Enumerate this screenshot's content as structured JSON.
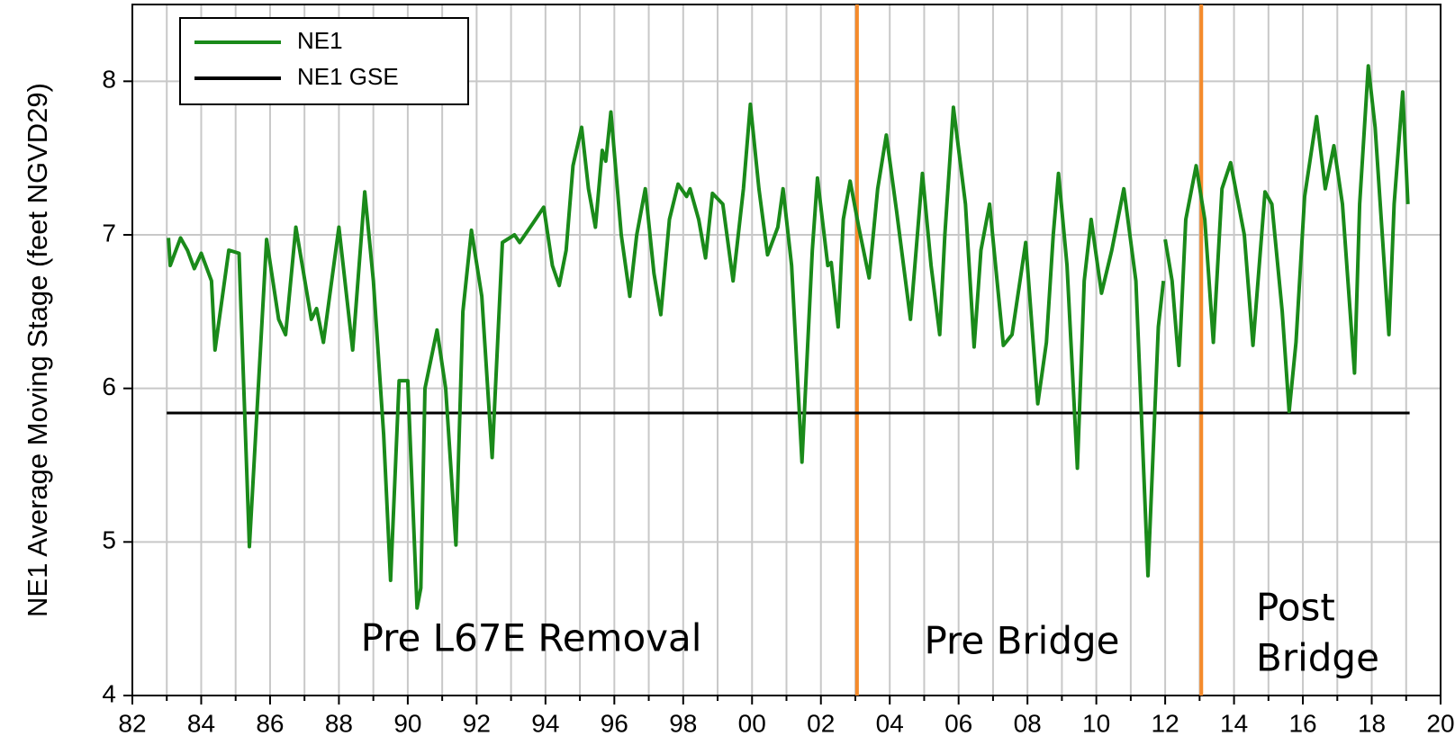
{
  "chart_data": {
    "type": "line",
    "y_label": "NE1 Average Moving Stage (feet NGVD29)",
    "series": [
      {
        "name": "NE1",
        "color": "#1a8a1a",
        "x": [
          1983.05,
          1983.1,
          1983.4,
          1983.6,
          1983.8,
          1984.0,
          1984.3,
          1984.4,
          1984.8,
          1985.1,
          1985.4,
          1985.9,
          1986.25,
          1986.45,
          1986.75,
          1987.2,
          1987.35,
          1987.55,
          1988.0,
          1988.4,
          1988.75,
          1989.0,
          1989.3,
          1989.5,
          1989.75,
          1990.0,
          1990.27,
          1990.38,
          1990.5,
          1990.85,
          1991.1,
          1991.4,
          1991.6,
          1991.85,
          1992.15,
          1992.45,
          1992.75,
          1993.1,
          1993.25,
          1993.65,
          1993.95,
          1994.2,
          1994.4,
          1994.6,
          1994.8,
          1995.05,
          1995.25,
          1995.45,
          1995.65,
          1995.75,
          1995.9,
          1996.2,
          1996.45,
          1996.65,
          1996.9,
          1997.15,
          1997.35,
          1997.6,
          1997.85,
          1998.1,
          1998.2,
          1998.45,
          1998.65,
          1998.85,
          1999.15,
          1999.45,
          1999.75,
          1999.95,
          2000.2,
          2000.45,
          2000.75,
          2000.9,
          2001.15,
          2001.45,
          2001.75,
          2001.9,
          2002.2,
          2002.3,
          2002.5,
          2002.65,
          2002.85,
          2003.1,
          2003.4,
          2003.65,
          2003.9,
          2004.2,
          2004.6,
          2004.95,
          2005.2,
          2005.45,
          2005.6,
          2005.85,
          2006.2,
          2006.45,
          2006.65,
          2006.9,
          2007.3,
          2007.55,
          2007.95,
          2008.3,
          2008.55,
          2008.75,
          2008.9,
          2009.15,
          2009.45,
          2009.65,
          2009.85,
          2010.15,
          2010.45,
          2010.8,
          2011.15,
          2011.5,
          2011.8,
          2011.95,
          null,
          2012.0,
          2012.2,
          2012.4,
          2012.6,
          2012.9,
          2013.15,
          2013.4,
          2013.65,
          2013.9,
          2014.3,
          2014.55,
          2014.9,
          2015.1,
          2015.4,
          2015.6,
          2015.8,
          2016.05,
          2016.4,
          2016.65,
          2016.9,
          2017.15,
          2017.5,
          2017.65,
          2017.9,
          2018.1,
          2018.5,
          2018.65,
          2018.9,
          2019.05
        ],
        "values": [
          6.98,
          6.8,
          6.98,
          6.9,
          6.78,
          6.88,
          6.7,
          6.25,
          6.9,
          6.88,
          4.97,
          6.97,
          6.45,
          6.35,
          7.05,
          6.45,
          6.52,
          6.3,
          7.05,
          6.25,
          7.28,
          6.7,
          5.7,
          4.75,
          6.05,
          6.05,
          4.57,
          4.7,
          6.0,
          6.38,
          6.0,
          4.98,
          6.5,
          7.03,
          6.6,
          5.55,
          6.95,
          7.0,
          6.95,
          7.08,
          7.18,
          6.8,
          6.67,
          6.9,
          7.45,
          7.7,
          7.3,
          7.05,
          7.55,
          7.48,
          7.8,
          7.0,
          6.6,
          7.0,
          7.3,
          6.75,
          6.48,
          7.1,
          7.33,
          7.25,
          7.3,
          7.1,
          6.85,
          7.27,
          7.2,
          6.7,
          7.3,
          7.85,
          7.3,
          6.87,
          7.05,
          7.3,
          6.8,
          5.52,
          6.9,
          7.37,
          6.8,
          6.82,
          6.4,
          7.1,
          7.35,
          7.05,
          6.72,
          7.3,
          7.65,
          7.15,
          6.45,
          7.4,
          6.8,
          6.35,
          7.0,
          7.83,
          7.2,
          6.27,
          6.9,
          7.2,
          6.28,
          6.35,
          6.95,
          5.9,
          6.3,
          7.0,
          7.4,
          6.8,
          5.48,
          6.7,
          7.1,
          6.62,
          6.9,
          7.3,
          6.7,
          4.78,
          6.4,
          6.7,
          null,
          6.97,
          6.7,
          6.15,
          7.1,
          7.45,
          7.1,
          6.3,
          7.3,
          7.47,
          7.0,
          6.28,
          7.28,
          7.2,
          6.5,
          5.85,
          6.3,
          7.25,
          7.77,
          7.3,
          7.58,
          7.2,
          6.1,
          7.2,
          8.1,
          7.7,
          6.35,
          7.2,
          7.93,
          7.2
        ]
      },
      {
        "name": "NE1 GSE",
        "color": "#000000",
        "x": [
          1983.0,
          2019.1
        ],
        "values": [
          5.84,
          5.84
        ]
      }
    ],
    "vlines": [
      {
        "x": 2003.05,
        "color": "#f58a2a"
      },
      {
        "x": 2013.05,
        "color": "#f58a2a"
      }
    ],
    "annotations": [
      {
        "text": "Pre L67E Removal"
      },
      {
        "text": "Pre Bridge"
      },
      {
        "lines": [
          "Post",
          "Bridge"
        ]
      }
    ],
    "xlim": [
      1982,
      2020
    ],
    "xticks": [
      {
        "value": 1982,
        "label": "82"
      },
      {
        "value": 1984,
        "label": "84"
      },
      {
        "value": 1986,
        "label": "86"
      },
      {
        "value": 1988,
        "label": "88"
      },
      {
        "value": 1990,
        "label": "90"
      },
      {
        "value": 1992,
        "label": "92"
      },
      {
        "value": 1994,
        "label": "94"
      },
      {
        "value": 1996,
        "label": "96"
      },
      {
        "value": 1998,
        "label": "98"
      },
      {
        "value": 2000,
        "label": "00"
      },
      {
        "value": 2002,
        "label": "02"
      },
      {
        "value": 2004,
        "label": "04"
      },
      {
        "value": 2006,
        "label": "06"
      },
      {
        "value": 2008,
        "label": "08"
      },
      {
        "value": 2010,
        "label": "10"
      },
      {
        "value": 2012,
        "label": "12"
      },
      {
        "value": 2014,
        "label": "14"
      },
      {
        "value": 2016,
        "label": "16"
      },
      {
        "value": 2018,
        "label": "18"
      },
      {
        "value": 2020,
        "label": "20"
      }
    ],
    "x_minor_ticks": [
      1983,
      1985,
      1987,
      1989,
      1991,
      1993,
      1995,
      1997,
      1999,
      2001,
      2003,
      2005,
      2007,
      2009,
      2011,
      2013,
      2015,
      2017,
      2019
    ],
    "ylim": [
      4,
      8.5
    ],
    "yticks": [
      4,
      5,
      6,
      7,
      8
    ],
    "grid": true,
    "legend": "upper left"
  }
}
